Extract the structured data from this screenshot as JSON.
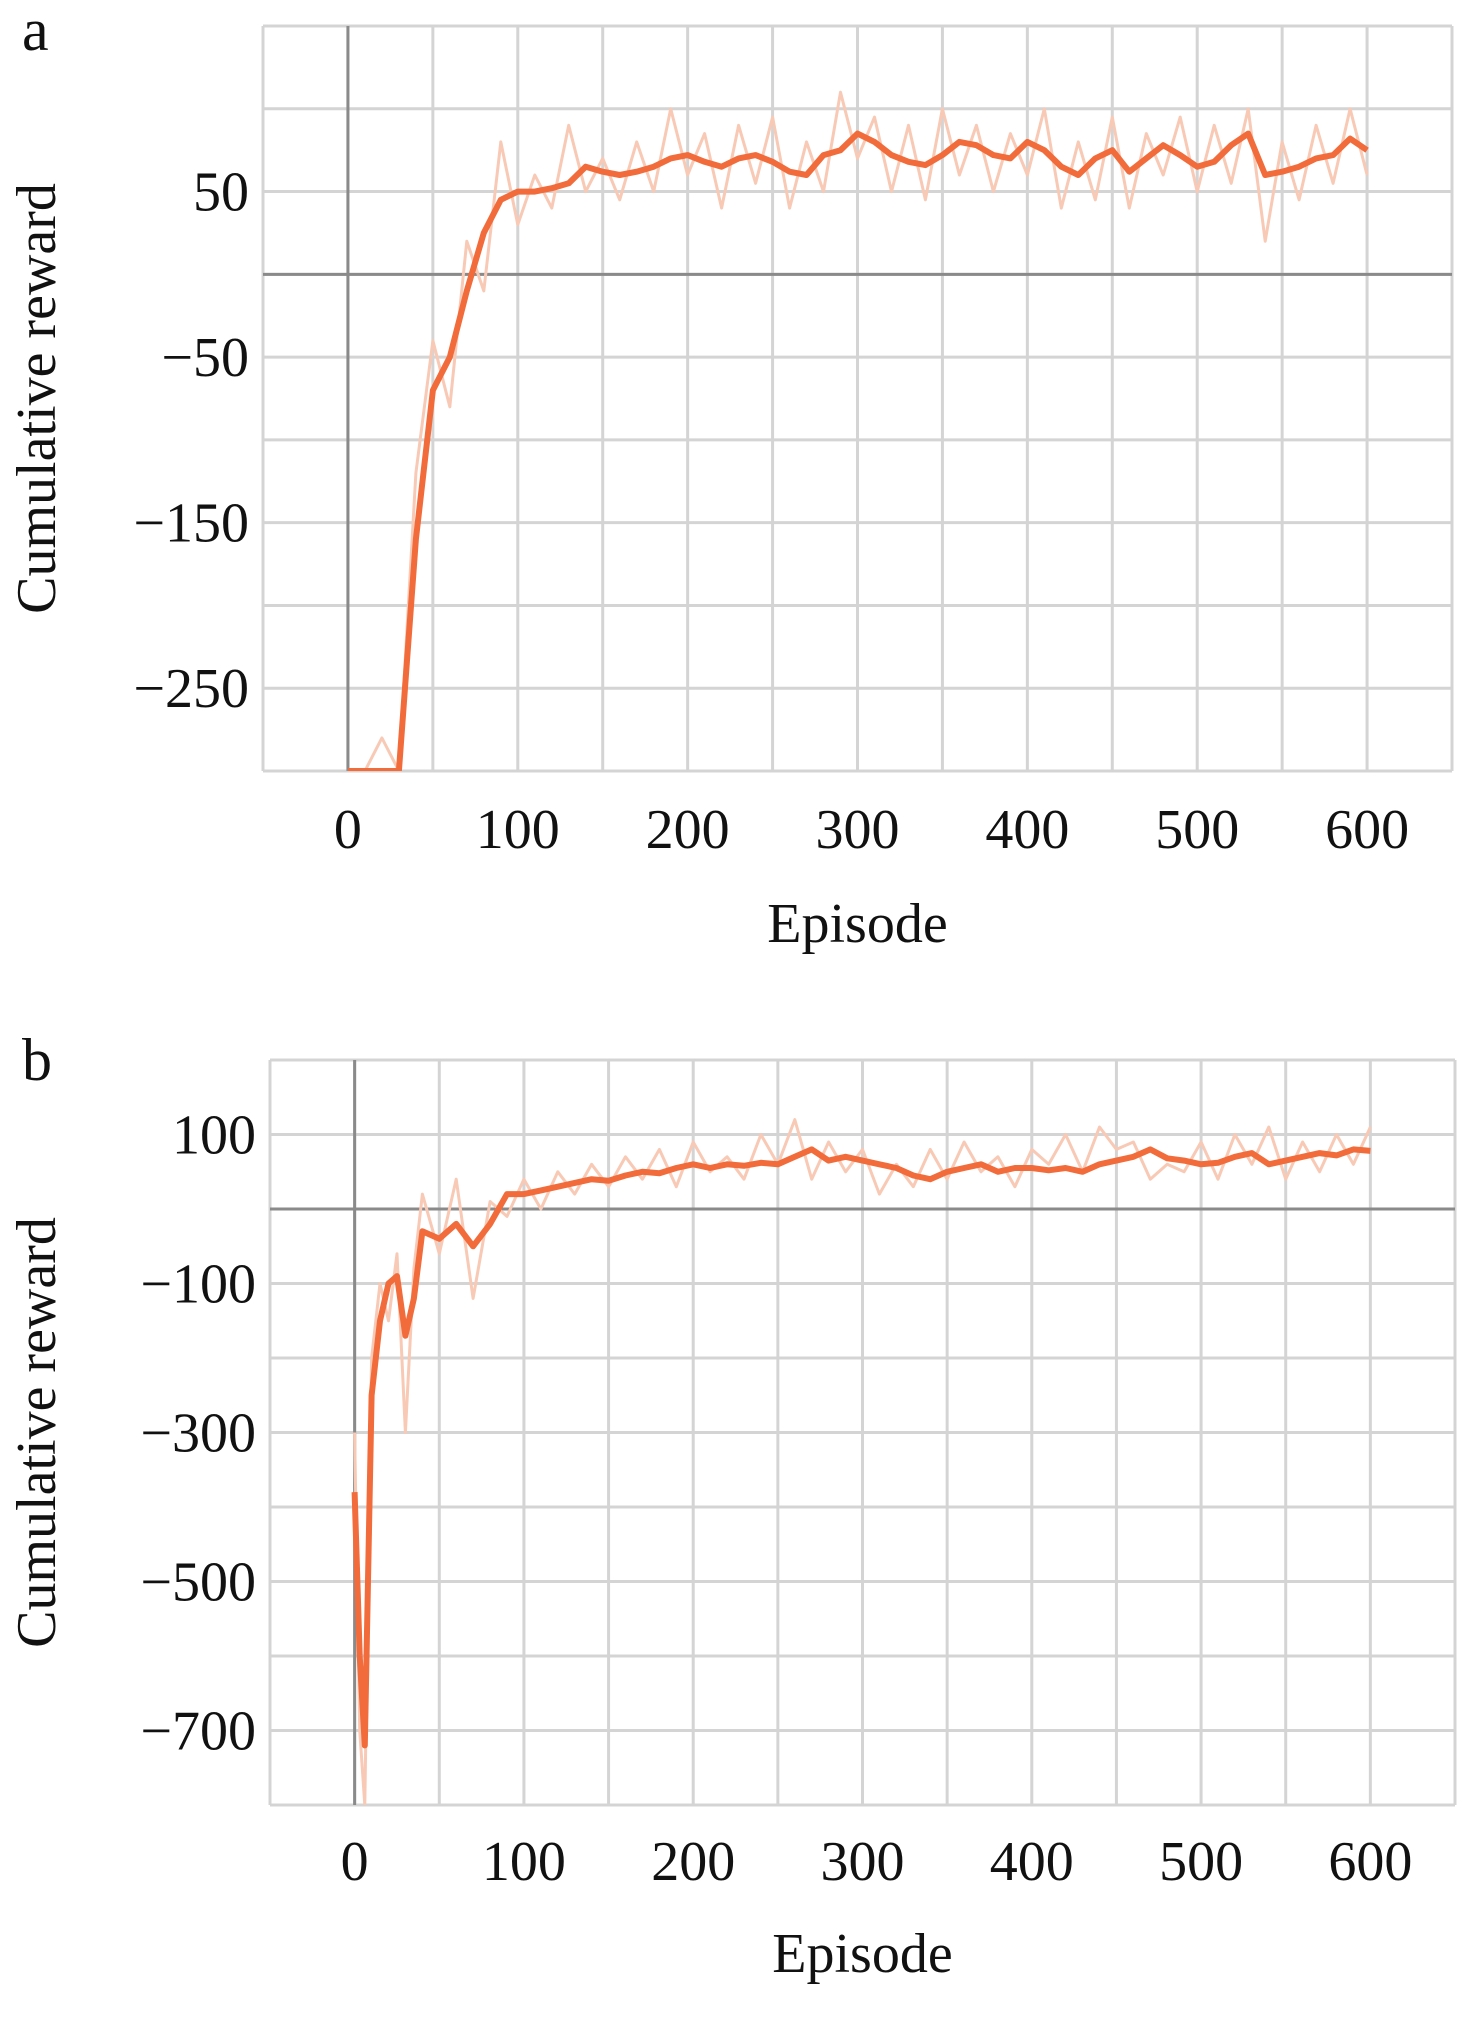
{
  "chart_data": [
    {
      "type": "line",
      "label": "a",
      "x_label": "Episode",
      "y_label": "Cumulative reward",
      "xlim": [
        -50,
        650
      ],
      "xticks": [
        0,
        100,
        200,
        300,
        400,
        500,
        600
      ],
      "ylim": [
        -300,
        150
      ],
      "yticks": [
        {
          "value": -250,
          "label": "−250"
        },
        {
          "value": -150,
          "label": "−150"
        },
        {
          "value": -50,
          "label": "−50"
        },
        50
      ],
      "grid": true,
      "x": [
        0,
        10,
        20,
        30,
        40,
        50,
        60,
        70,
        80,
        90,
        100,
        110,
        120,
        130,
        140,
        150,
        160,
        170,
        180,
        190,
        200,
        210,
        220,
        230,
        240,
        250,
        260,
        270,
        280,
        290,
        300,
        310,
        320,
        330,
        340,
        350,
        360,
        370,
        380,
        390,
        400,
        410,
        420,
        430,
        440,
        450,
        460,
        470,
        480,
        490,
        500,
        510,
        520,
        530,
        540,
        550,
        560,
        570,
        580,
        590,
        600
      ],
      "series": [
        {
          "color": "#f8c9b5",
          "values": [
            -300,
            -300,
            -280,
            -300,
            -120,
            -40,
            -80,
            20,
            -10,
            80,
            30,
            60,
            40,
            90,
            50,
            70,
            45,
            80,
            50,
            100,
            60,
            85,
            40,
            90,
            55,
            95,
            40,
            80,
            50,
            110,
            70,
            95,
            50,
            90,
            45,
            100,
            60,
            90,
            50,
            85,
            60,
            100,
            40,
            80,
            45,
            95,
            40,
            85,
            60,
            95,
            50,
            90,
            55,
            100,
            20,
            80,
            45,
            90,
            55,
            100,
            60
          ]
        },
        {
          "color": "#f26b3a",
          "values": [
            -300,
            -300,
            -300,
            -300,
            -160,
            -70,
            -50,
            -10,
            25,
            45,
            50,
            50,
            52,
            55,
            65,
            62,
            60,
            62,
            65,
            70,
            72,
            68,
            65,
            70,
            72,
            68,
            62,
            60,
            72,
            75,
            85,
            80,
            72,
            68,
            66,
            72,
            80,
            78,
            72,
            70,
            80,
            75,
            65,
            60,
            70,
            75,
            62,
            70,
            78,
            72,
            65,
            68,
            78,
            85,
            60,
            62,
            65,
            70,
            72,
            82,
            75
          ]
        }
      ]
    },
    {
      "type": "line",
      "label": "b",
      "x_label": "Episode",
      "y_label": "Cumulative reward",
      "xlim": [
        -50,
        650
      ],
      "xticks": [
        0,
        100,
        200,
        300,
        400,
        500,
        600
      ],
      "ylim": [
        -800,
        200
      ],
      "yticks": [
        {
          "value": -700,
          "label": "−700"
        },
        {
          "value": -500,
          "label": "−500"
        },
        {
          "value": -300,
          "label": "−300"
        },
        {
          "value": -100,
          "label": "−100"
        },
        100
      ],
      "grid": true,
      "x": [
        0,
        3,
        6,
        10,
        15,
        20,
        25,
        30,
        35,
        40,
        50,
        60,
        70,
        80,
        90,
        100,
        110,
        120,
        130,
        140,
        150,
        160,
        170,
        180,
        190,
        200,
        210,
        220,
        230,
        240,
        250,
        260,
        270,
        280,
        290,
        300,
        310,
        320,
        330,
        340,
        350,
        360,
        370,
        380,
        390,
        400,
        410,
        420,
        430,
        440,
        450,
        460,
        470,
        480,
        490,
        500,
        510,
        520,
        530,
        540,
        550,
        560,
        570,
        580,
        590,
        600
      ],
      "series": [
        {
          "color": "#f8c9b5",
          "values": [
            -300,
            -700,
            -800,
            -200,
            -100,
            -150,
            -60,
            -300,
            -80,
            20,
            -60,
            40,
            -120,
            10,
            -10,
            40,
            0,
            50,
            20,
            60,
            30,
            70,
            40,
            80,
            30,
            90,
            50,
            70,
            40,
            100,
            60,
            120,
            40,
            90,
            50,
            80,
            20,
            60,
            30,
            80,
            40,
            90,
            50,
            70,
            30,
            80,
            60,
            100,
            50,
            110,
            80,
            90,
            40,
            60,
            50,
            90,
            40,
            100,
            60,
            110,
            40,
            90,
            50,
            100,
            60,
            110
          ]
        },
        {
          "color": "#f26b3a",
          "values": [
            -380,
            -600,
            -720,
            -250,
            -150,
            -100,
            -90,
            -170,
            -120,
            -30,
            -40,
            -20,
            -50,
            -20,
            20,
            20,
            25,
            30,
            35,
            40,
            38,
            45,
            50,
            48,
            55,
            60,
            55,
            60,
            58,
            62,
            60,
            70,
            80,
            65,
            70,
            65,
            60,
            55,
            45,
            40,
            50,
            55,
            60,
            50,
            55,
            55,
            52,
            55,
            50,
            60,
            65,
            70,
            80,
            68,
            65,
            60,
            62,
            70,
            75,
            60,
            65,
            70,
            75,
            72,
            80,
            78
          ]
        }
      ]
    }
  ]
}
